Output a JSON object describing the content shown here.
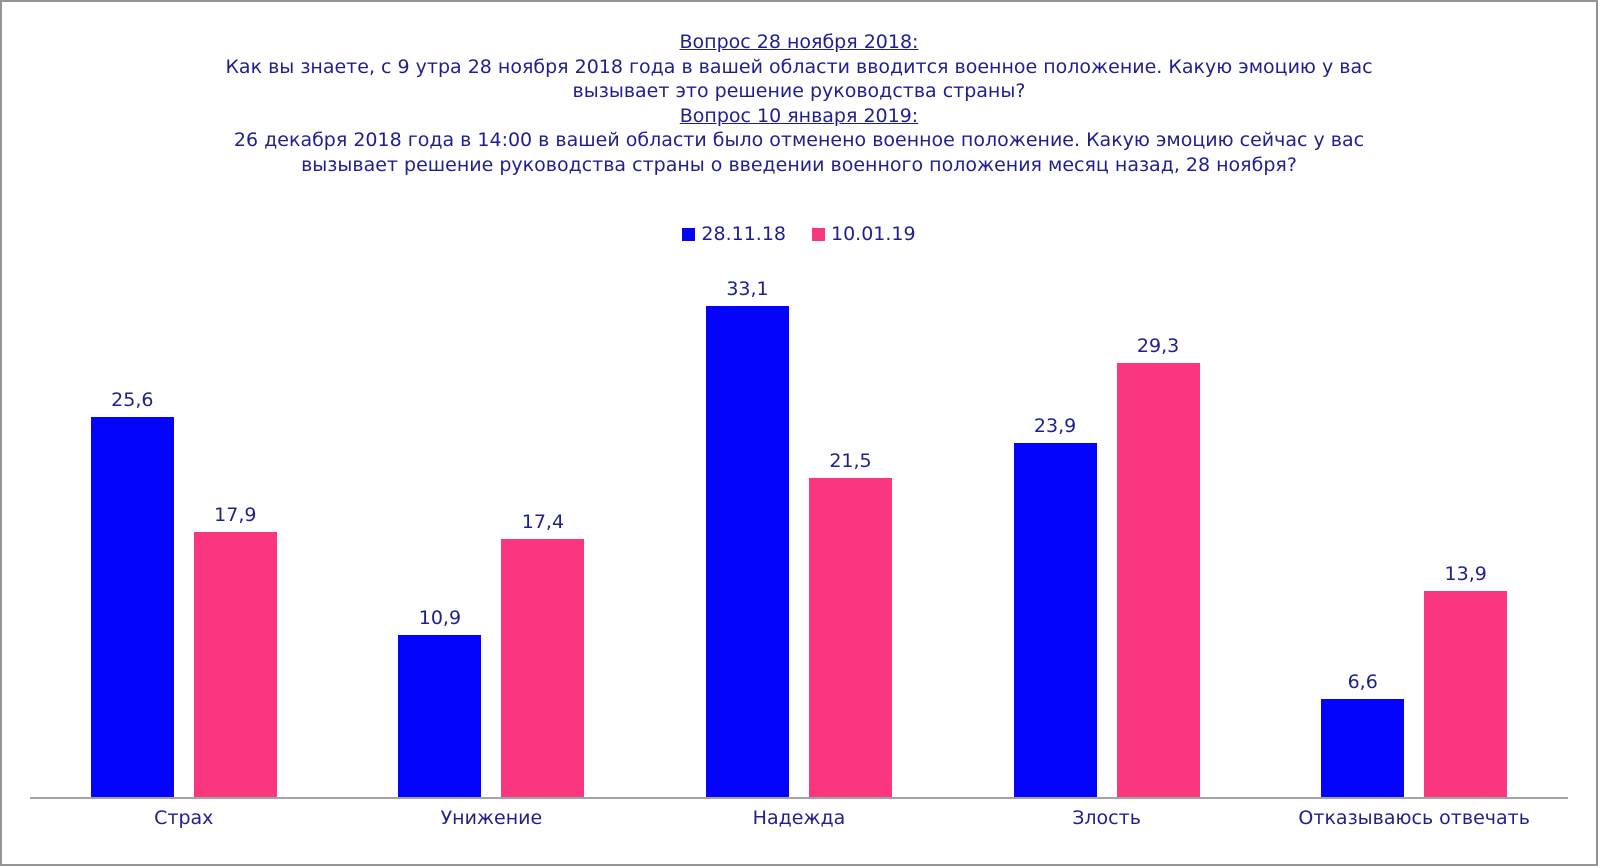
{
  "header": {
    "lines": [
      {
        "text": "Вопрос 28 ноября 2018:",
        "underline": true
      },
      {
        "text": "Как вы знаете, с 9 утра 28 ноября 2018 года в вашей области вводится военное положение. Какую эмоцию у вас",
        "underline": false
      },
      {
        "text": "вызывает это решение руководства страны?",
        "underline": false
      },
      {
        "text": "Вопрос 10 января 2019:",
        "underline": true
      },
      {
        "text": "26 декабря 2018 года в 14:00 в вашей области было отменено военное положение. Какую эмоцию сейчас у вас",
        "underline": false
      },
      {
        "text": "вызывает решение руководства страны о введении военного положения месяц назад, 28 ноября?",
        "underline": false
      }
    ]
  },
  "chart_data": {
    "type": "bar",
    "categories": [
      "Страх",
      "Унижение",
      "Надежда",
      "Злость",
      "Отказываюсь отвечать"
    ],
    "series": [
      {
        "name": "28.11.18",
        "color": "#0404fc",
        "values": [
          25.6,
          10.9,
          33.1,
          23.9,
          6.6
        ],
        "labels": [
          "25,6",
          "10,9",
          "33,1",
          "23,9",
          "6,6"
        ]
      },
      {
        "name": "10.01.19",
        "color": "#fb3680",
        "values": [
          17.9,
          17.4,
          21.5,
          29.3,
          13.9
        ],
        "labels": [
          "17,9",
          "17,4",
          "21,5",
          "29,3",
          "13,9"
        ]
      }
    ],
    "ylim": [
      0,
      37
    ],
    "grid": false,
    "legend_position": "top-center",
    "value_label_decimal_separator": ",",
    "text_color": "#1f1f8f",
    "axis_line_color": "#a3a3a3",
    "frame_border_color": "#949494"
  }
}
